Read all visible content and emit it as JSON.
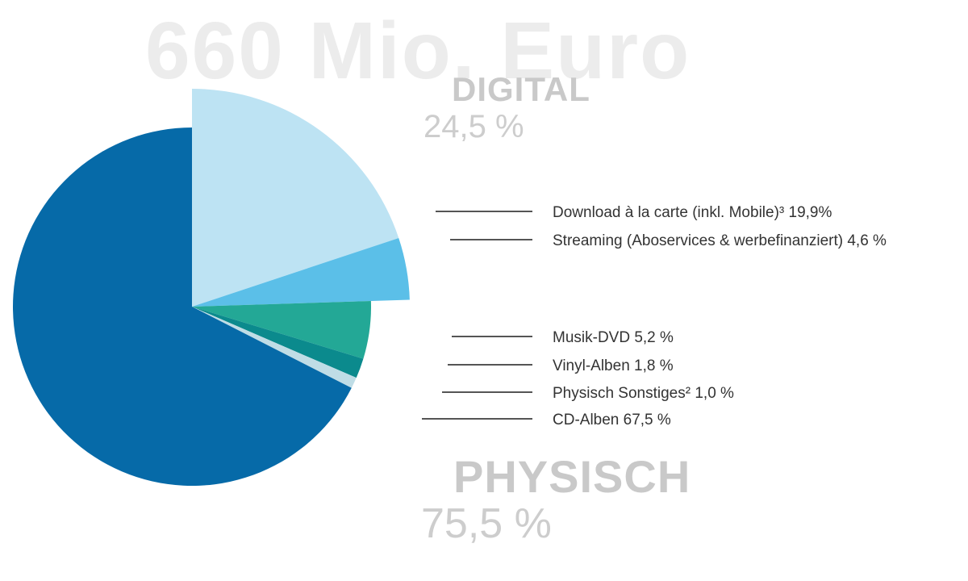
{
  "headline": "660 Mio. Euro",
  "groups": {
    "digital": {
      "label": "DIGITAL",
      "percent": "24,5 %"
    },
    "physisch": {
      "label": "PHYSISCH",
      "percent": "75,5 %"
    }
  },
  "colors": {
    "download": "#bde3f3",
    "streaming": "#5bbfe8",
    "dvd": "#23a896",
    "vinyl": "#0b8a8d",
    "sonstiges": "#bfdde6",
    "cd": "#066aa8"
  },
  "chart_data": {
    "type": "pie",
    "title": "660 Mio. Euro",
    "slices": [
      {
        "key": "download",
        "label": "Download à la carte (inkl. Mobile)³ 19,9%",
        "value": 19.9,
        "group": "digital",
        "exploded": true
      },
      {
        "key": "streaming",
        "label": "Streaming (Aboservices & werbefinanziert) 4,6 %",
        "value": 4.6,
        "group": "digital",
        "exploded": true
      },
      {
        "key": "dvd",
        "label": "Musik-DVD 5,2 %",
        "value": 5.2,
        "group": "physisch",
        "exploded": false
      },
      {
        "key": "vinyl",
        "label": "Vinyl-Alben 1,8 %",
        "value": 1.8,
        "group": "physisch",
        "exploded": false
      },
      {
        "key": "sonstiges",
        "label": "Physisch Sonstiges² 1,0 %",
        "value": 1.0,
        "group": "physisch",
        "exploded": false
      },
      {
        "key": "cd",
        "label": "CD-Alben 67,5 %",
        "value": 67.5,
        "group": "physisch",
        "exploded": false
      }
    ]
  }
}
